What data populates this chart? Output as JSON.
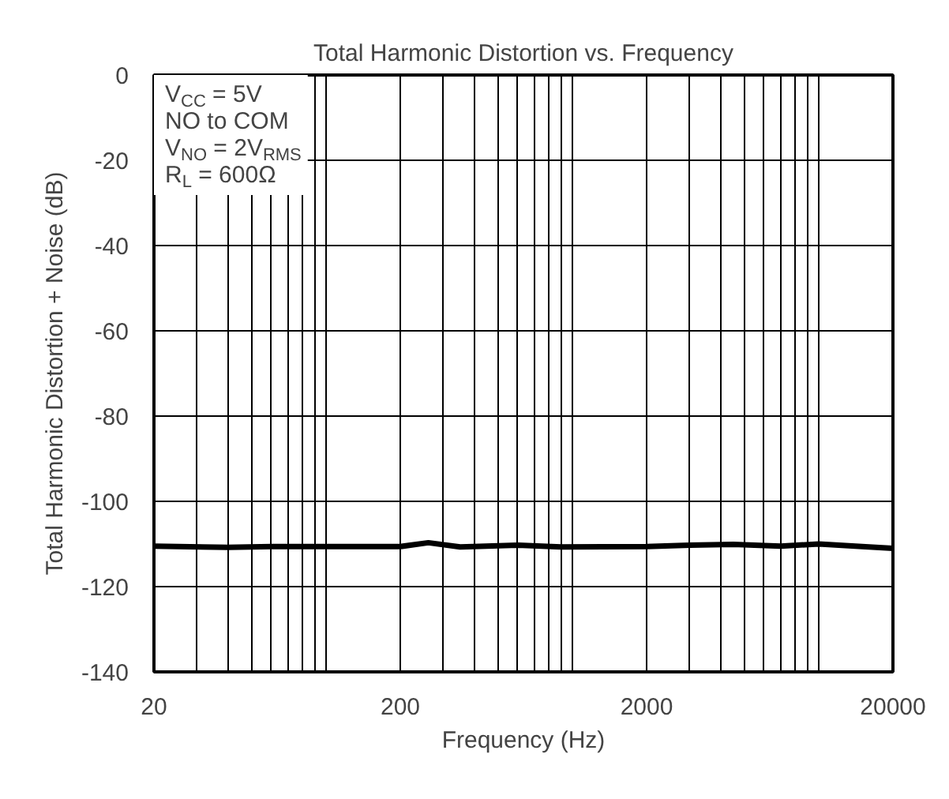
{
  "chart_data": {
    "type": "line",
    "title": "Total Harmonic Distortion vs. Frequency",
    "xlabel": "Frequency (Hz)",
    "ylabel": "Total Harmonic Distortion + Noise (dB)",
    "annotations": [
      "V$_{CC}$ = 5V",
      "NO to COM",
      "V$_{NO}$ = 2V$_{RMS}$",
      "R$_{L}$ = 600Ω"
    ],
    "log": "x",
    "grid": true,
    "line_style": "solid",
    "marker": "none",
    "x": [
      20,
      40,
      60,
      100,
      200,
      260,
      350,
      600,
      900,
      2000,
      3000,
      4500,
      7000,
      10000,
      15000,
      20000
    ],
    "series": [
      {
        "color": "#000000",
        "values": [
          -110.5,
          -110.8,
          -110.6,
          -110.6,
          -110.6,
          -109.7,
          -110.7,
          -110.3,
          -110.7,
          -110.6,
          -110.3,
          -110.1,
          -110.5,
          -110.0,
          -110.6,
          -111.0
        ]
      }
    ],
    "xlim": [
      20,
      20000
    ],
    "ylim": [
      -140,
      0
    ],
    "xticks": [
      20,
      {
        "value": 30,
        "label": null
      },
      {
        "value": 40,
        "label": null
      },
      {
        "value": 50,
        "label": null
      },
      {
        "value": 60,
        "label": null
      },
      {
        "value": 70,
        "label": null
      },
      {
        "value": 80,
        "label": null
      },
      {
        "value": 90,
        "label": null
      },
      {
        "value": 100,
        "label": null
      },
      200,
      {
        "value": 300,
        "label": null
      },
      {
        "value": 400,
        "label": null
      },
      {
        "value": 500,
        "label": null
      },
      {
        "value": 600,
        "label": null
      },
      {
        "value": 700,
        "label": null
      },
      {
        "value": 800,
        "label": null
      },
      {
        "value": 900,
        "label": null
      },
      {
        "value": 1000,
        "label": null
      },
      2000,
      {
        "value": 3000,
        "label": null
      },
      {
        "value": 4000,
        "label": null
      },
      {
        "value": 5000,
        "label": null
      },
      {
        "value": 6000,
        "label": null
      },
      {
        "value": 7000,
        "label": null
      },
      {
        "value": 8000,
        "label": null
      },
      {
        "value": 9000,
        "label": null
      },
      {
        "value": 10000,
        "label": null
      },
      20000
    ],
    "yticks": [
      -140,
      -120,
      -100,
      -80,
      -60,
      -40,
      -20,
      0
    ]
  }
}
